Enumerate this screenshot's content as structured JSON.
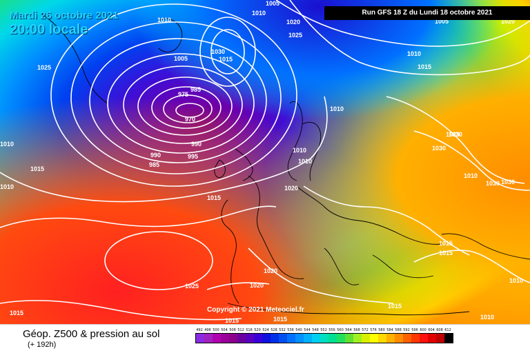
{
  "header": {
    "date": "Mardi 26 octobre 2021",
    "local_time": "20:00 locale",
    "run_info": "Run GFS 18 Z du Lundi 18 octobre 2021"
  },
  "footer": {
    "product_title": "Géop. Z500 & pression au sol",
    "forecast_hour": "(+ 192h)",
    "copyright": "Copyright © 2021 Meteociel.fr"
  },
  "legend": {
    "values": [
      "492",
      "496",
      "500",
      "504",
      "508",
      "512",
      "516",
      "520",
      "524",
      "528",
      "532",
      "536",
      "540",
      "544",
      "548",
      "552",
      "556",
      "560",
      "564",
      "568",
      "572",
      "576",
      "580",
      "584",
      "588",
      "592",
      "596",
      "600",
      "604",
      "608",
      "612"
    ],
    "colors": [
      "#8a2be2",
      "#a020c0",
      "#b000b0",
      "#9a0099",
      "#8a008a",
      "#6a00a0",
      "#5a00c0",
      "#3a00d8",
      "#1010e0",
      "#0030e8",
      "#0050f0",
      "#0070ff",
      "#0090ff",
      "#00b0ff",
      "#00d0f0",
      "#00e0c0",
      "#00e090",
      "#20e060",
      "#60e030",
      "#a0f020",
      "#d8f000",
      "#ffff00",
      "#ffd800",
      "#ffb000",
      "#ff8c00",
      "#ff6000",
      "#ff3800",
      "#ff1010",
      "#e00000",
      "#c00000",
      "#000000"
    ]
  },
  "isobar_labels": [
    "1010",
    "1005",
    "1020",
    "1025",
    "1005",
    "1010",
    "1015",
    "1020",
    "1025",
    "1030",
    "1010",
    "1015",
    "1005",
    "1030",
    "1015",
    "1010",
    "1010",
    "1010",
    "985",
    "975",
    "970",
    "990",
    "985",
    "995",
    "990",
    "1010",
    "1010",
    "1015",
    "1020",
    "1025",
    "1030",
    "1030",
    "1030",
    "1010",
    "1015",
    "1015",
    "1020",
    "1020",
    "1025",
    "1015",
    "1015",
    "1010",
    "1015",
    "1010",
    "1015"
  ],
  "colors": {
    "isobar": "#ffffff",
    "coast": "#000000"
  }
}
